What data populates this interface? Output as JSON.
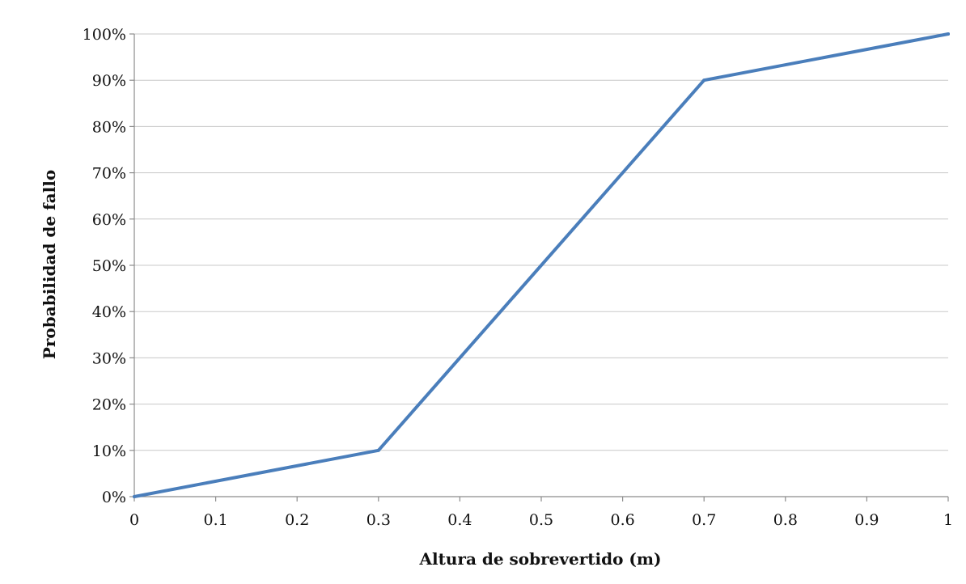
{
  "chart_data": {
    "type": "line",
    "title": "",
    "xlabel": "Altura de sobrevertido (m)",
    "ylabel": "Probabilidad de fallo",
    "xlim": [
      0,
      1
    ],
    "ylim": [
      0,
      1
    ],
    "x_ticks": [
      0,
      0.1,
      0.2,
      0.3,
      0.4,
      0.5,
      0.6,
      0.7,
      0.8,
      0.9,
      1
    ],
    "x_tick_labels": [
      "0",
      "0.1",
      "0.2",
      "0.3",
      "0.4",
      "0.5",
      "0.6",
      "0.7",
      "0.8",
      "0.9",
      "1"
    ],
    "y_ticks": [
      0,
      0.1,
      0.2,
      0.3,
      0.4,
      0.5,
      0.6,
      0.7,
      0.8,
      0.9,
      1
    ],
    "y_tick_labels": [
      "0%",
      "10%",
      "20%",
      "30%",
      "40%",
      "50%",
      "60%",
      "70%",
      "80%",
      "90%",
      "100%"
    ],
    "grid": "horizontal",
    "legend": "none",
    "series": [
      {
        "x": [
          0,
          0.3,
          0.7,
          1
        ],
        "values": [
          0,
          0.1,
          0.9,
          1
        ],
        "color": "#4a7ebb"
      }
    ]
  }
}
